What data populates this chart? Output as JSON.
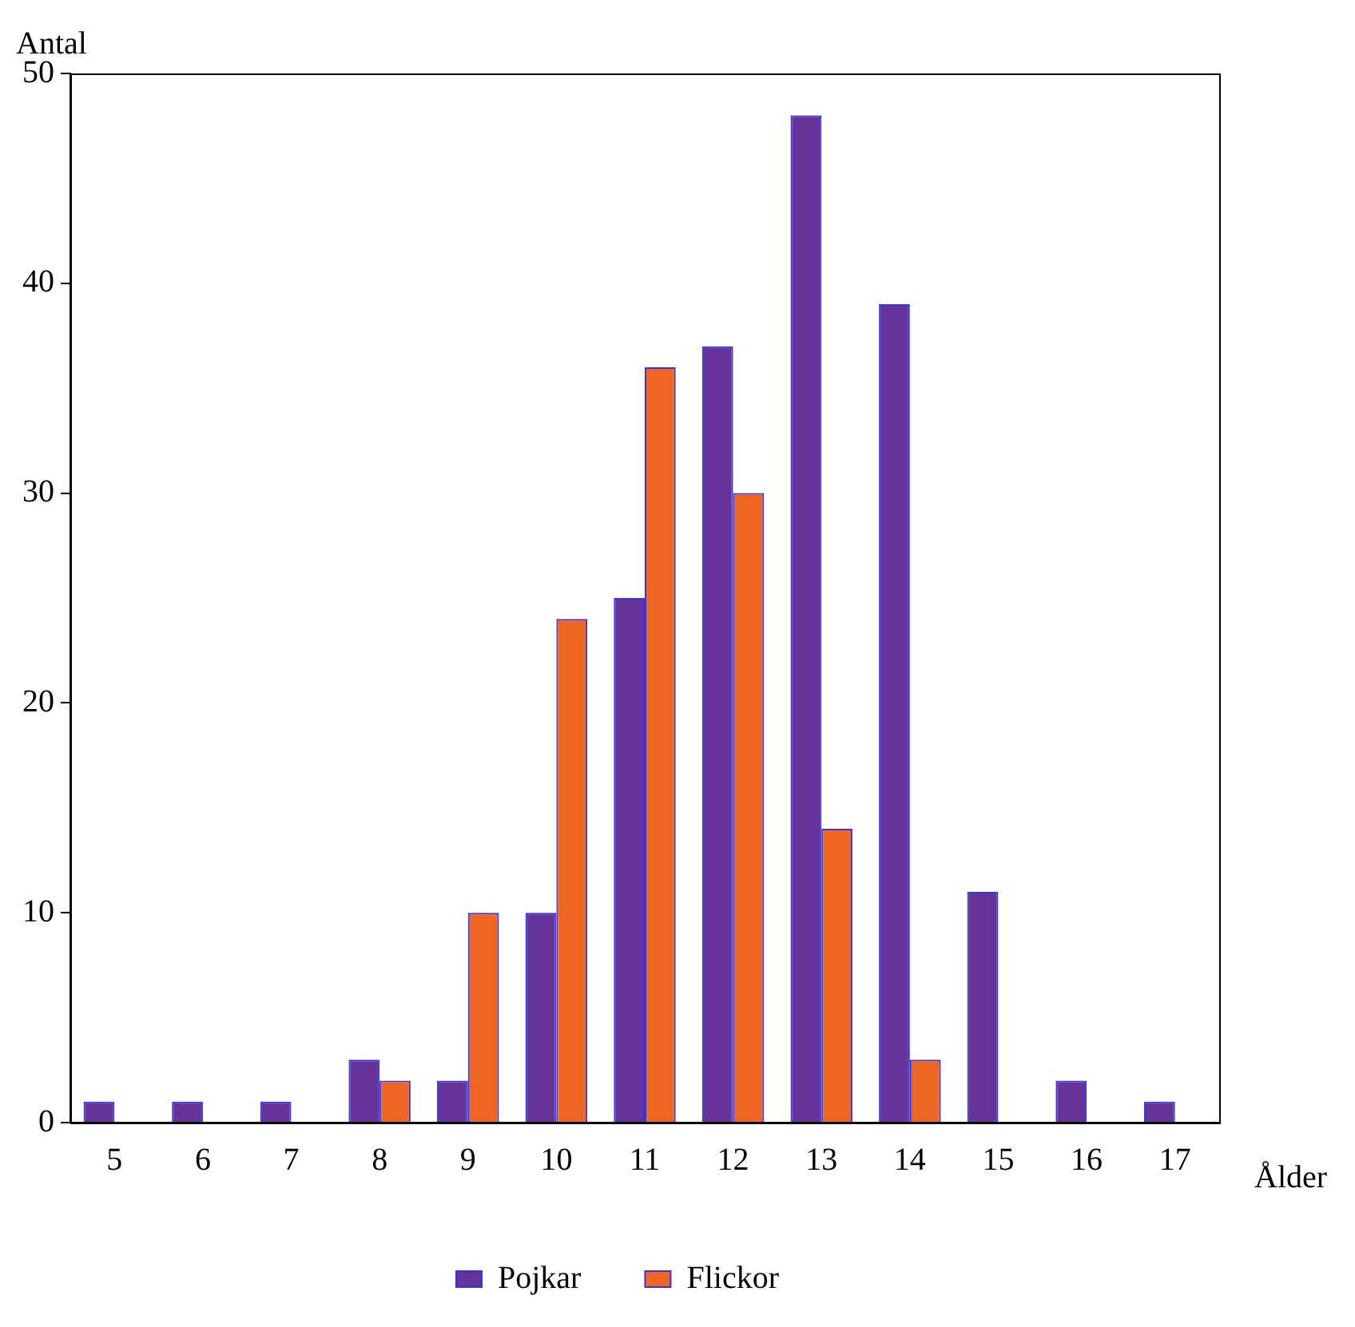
{
  "chart_data": {
    "type": "bar",
    "xlabel": "Ålder",
    "ylabel": "Antal",
    "categories": [
      "5",
      "6",
      "7",
      "8",
      "9",
      "10",
      "11",
      "12",
      "13",
      "14",
      "15",
      "16",
      "17"
    ],
    "series": [
      {
        "name": "Pojkar",
        "color": "#663399",
        "values": [
          1,
          1,
          1,
          3,
          2,
          10,
          25,
          37,
          48,
          39,
          11,
          2,
          1
        ]
      },
      {
        "name": "Flickor",
        "color": "#ee6622",
        "values": [
          0,
          0,
          0,
          2,
          10,
          24,
          36,
          30,
          14,
          3,
          0,
          0,
          0
        ]
      }
    ],
    "ylim": [
      0,
      50
    ],
    "yticks": [
      0,
      10,
      20,
      30,
      40,
      50
    ],
    "grid": false,
    "legend": "bottom"
  }
}
